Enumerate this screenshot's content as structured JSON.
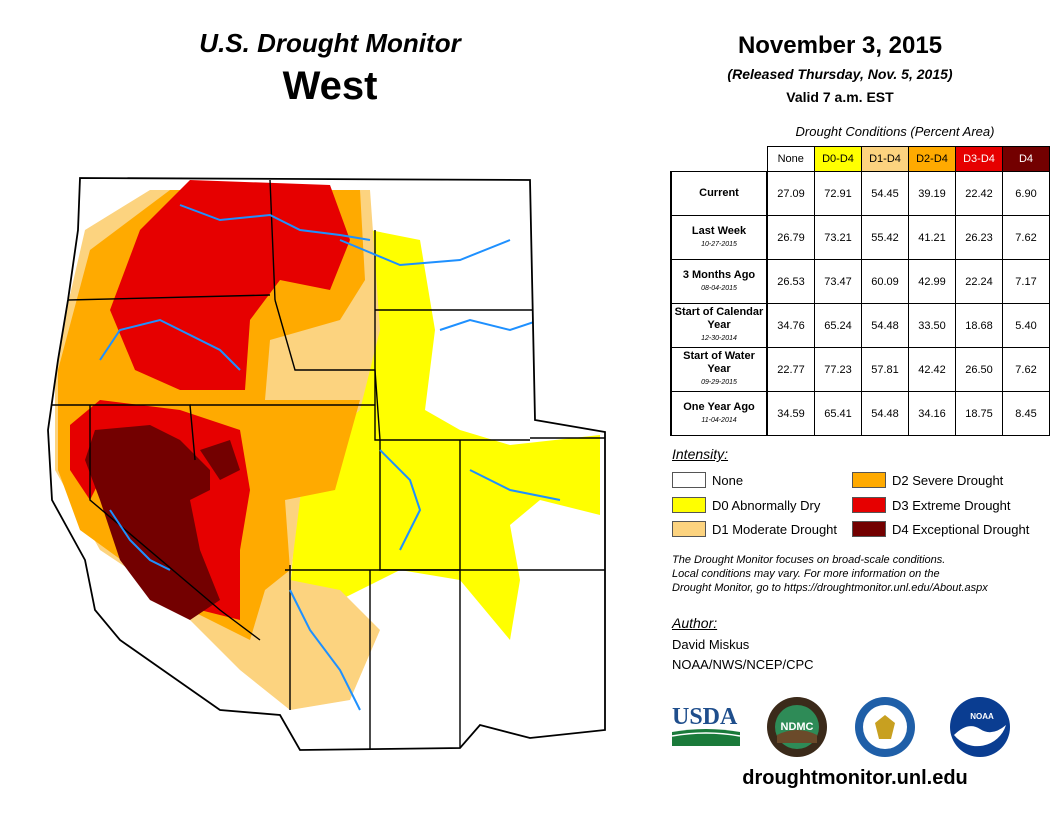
{
  "header": {
    "title_line1": "U.S. Drought Monitor",
    "title_line2": "West",
    "date": "November 3, 2015",
    "released": "(Released Thursday, Nov. 5, 2015)",
    "valid": "Valid 7 a.m. EST"
  },
  "table": {
    "caption": "Drought Conditions (Percent Area)",
    "columns": [
      "None",
      "D0-D4",
      "D1-D4",
      "D2-D4",
      "D3-D4",
      "D4"
    ],
    "rows": [
      {
        "label": "Current",
        "date": "",
        "values": [
          "27.09",
          "72.91",
          "54.45",
          "39.19",
          "22.42",
          "6.90"
        ]
      },
      {
        "label": "Last Week",
        "date": "10-27-2015",
        "values": [
          "26.79",
          "73.21",
          "55.42",
          "41.21",
          "26.23",
          "7.62"
        ]
      },
      {
        "label": "3 Months Ago",
        "date": "08-04-2015",
        "values": [
          "26.53",
          "73.47",
          "60.09",
          "42.99",
          "22.24",
          "7.17"
        ]
      },
      {
        "label": "Start of Calendar Year",
        "date": "12-30-2014",
        "values": [
          "34.76",
          "65.24",
          "54.48",
          "33.50",
          "18.68",
          "5.40"
        ]
      },
      {
        "label": "Start of Water Year",
        "date": "09-29-2015",
        "values": [
          "22.77",
          "77.23",
          "57.81",
          "42.42",
          "26.50",
          "7.62"
        ]
      },
      {
        "label": "One Year Ago",
        "date": "11-04-2014",
        "values": [
          "34.59",
          "65.41",
          "54.48",
          "34.16",
          "18.75",
          "8.45"
        ]
      }
    ]
  },
  "legend": {
    "title": "Intensity:",
    "items": [
      {
        "label": "None",
        "color": "#ffffff"
      },
      {
        "label": "D0 Abnormally Dry",
        "color": "#ffff00"
      },
      {
        "label": "D1 Moderate Drought",
        "color": "#fcd37f"
      },
      {
        "label": "D2 Severe Drought",
        "color": "#ffaa00"
      },
      {
        "label": "D3 Extreme Drought",
        "color": "#e60000"
      },
      {
        "label": "D4 Exceptional Drought",
        "color": "#730000"
      }
    ]
  },
  "footnote": {
    "line1": "The Drought Monitor focuses on broad-scale conditions.",
    "line2": "Local conditions may vary. For more information on the",
    "line3": "Drought Monitor, go to https://droughtmonitor.unl.edu/About.aspx"
  },
  "author": {
    "title": "Author:",
    "name": "David Miskus",
    "org": "NOAA/NWS/NCEP/CPC"
  },
  "logos": {
    "usda": "USDA",
    "ndmc": "NDMC",
    "noaa": "NOAA"
  },
  "url": "droughtmonitor.unl.edu"
}
